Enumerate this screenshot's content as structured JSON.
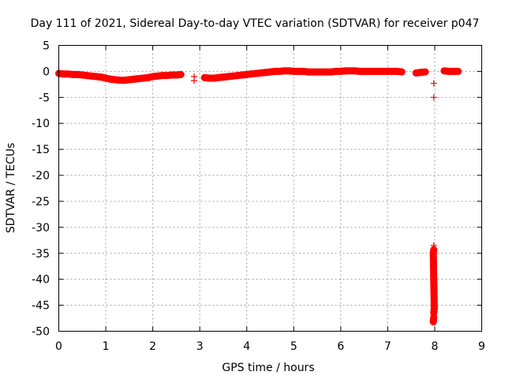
{
  "chart_data": {
    "type": "scatter",
    "title": "Day 111 of 2021, Sidereal Day-to-day VTEC variation (SDTVAR) for receiver p047",
    "xlabel": "GPS time / hours",
    "ylabel": "SDTVAR / TECUs",
    "xlim": [
      0,
      9
    ],
    "ylim": [
      -50,
      5
    ],
    "x_ticks": [
      0,
      1,
      2,
      3,
      4,
      5,
      6,
      7,
      8,
      9
    ],
    "y_ticks": [
      5,
      0,
      -5,
      -10,
      -15,
      -20,
      -25,
      -30,
      -35,
      -40,
      -45,
      -50
    ],
    "grid": true,
    "marker": "+",
    "series_color": "#ff0000",
    "series": [
      {
        "name": "SDTVAR",
        "points": [
          [
            0.0,
            -0.4
          ],
          [
            0.1,
            -0.5
          ],
          [
            0.2,
            -0.5
          ],
          [
            0.3,
            -0.6
          ],
          [
            0.4,
            -0.6
          ],
          [
            0.5,
            -0.7
          ],
          [
            0.6,
            -0.8
          ],
          [
            0.7,
            -0.9
          ],
          [
            0.8,
            -1.0
          ],
          [
            0.9,
            -1.1
          ],
          [
            1.0,
            -1.3
          ],
          [
            1.1,
            -1.5
          ],
          [
            1.2,
            -1.6
          ],
          [
            1.3,
            -1.7
          ],
          [
            1.4,
            -1.7
          ],
          [
            1.5,
            -1.6
          ],
          [
            1.6,
            -1.5
          ],
          [
            1.7,
            -1.4
          ],
          [
            1.8,
            -1.3
          ],
          [
            1.9,
            -1.2
          ],
          [
            2.0,
            -1.0
          ],
          [
            2.1,
            -0.9
          ],
          [
            2.2,
            -0.8
          ],
          [
            2.3,
            -0.8
          ],
          [
            2.4,
            -0.7
          ],
          [
            2.5,
            -0.7
          ],
          [
            2.6,
            -0.6
          ],
          [
            2.88,
            -1.0
          ],
          [
            2.88,
            -1.8
          ],
          [
            3.1,
            -1.2
          ],
          [
            3.2,
            -1.3
          ],
          [
            3.3,
            -1.3
          ],
          [
            3.4,
            -1.2
          ],
          [
            3.5,
            -1.1
          ],
          [
            3.6,
            -1.0
          ],
          [
            3.7,
            -0.9
          ],
          [
            3.8,
            -0.8
          ],
          [
            3.9,
            -0.7
          ],
          [
            4.0,
            -0.6
          ],
          [
            4.1,
            -0.5
          ],
          [
            4.2,
            -0.4
          ],
          [
            4.3,
            -0.3
          ],
          [
            4.4,
            -0.2
          ],
          [
            4.5,
            -0.1
          ],
          [
            4.6,
            0.0
          ],
          [
            4.7,
            0.0
          ],
          [
            4.8,
            0.1
          ],
          [
            4.9,
            0.1
          ],
          [
            5.0,
            0.0
          ],
          [
            5.1,
            0.0
          ],
          [
            5.2,
            0.0
          ],
          [
            5.3,
            -0.1
          ],
          [
            5.4,
            -0.1
          ],
          [
            5.5,
            -0.1
          ],
          [
            5.6,
            -0.1
          ],
          [
            5.7,
            -0.1
          ],
          [
            5.8,
            -0.1
          ],
          [
            5.9,
            0.0
          ],
          [
            6.0,
            0.0
          ],
          [
            6.1,
            0.1
          ],
          [
            6.2,
            0.1
          ],
          [
            6.3,
            0.1
          ],
          [
            6.4,
            0.0
          ],
          [
            6.5,
            0.0
          ],
          [
            6.6,
            0.0
          ],
          [
            6.7,
            0.0
          ],
          [
            6.8,
            0.0
          ],
          [
            6.9,
            0.0
          ],
          [
            7.0,
            0.0
          ],
          [
            7.1,
            0.0
          ],
          [
            7.2,
            0.0
          ],
          [
            7.3,
            -0.1
          ],
          [
            7.6,
            -0.3
          ],
          [
            7.7,
            -0.2
          ],
          [
            7.8,
            -0.1
          ],
          [
            7.98,
            -2.3
          ],
          [
            7.98,
            -5.0
          ],
          [
            7.98,
            -33.5
          ],
          [
            7.98,
            -34.3
          ],
          [
            7.97,
            -35.0
          ],
          [
            7.99,
            -45.6
          ],
          [
            7.98,
            -46.5
          ],
          [
            7.98,
            -47.3
          ],
          [
            7.97,
            -48.2
          ],
          [
            8.2,
            0.1
          ],
          [
            8.3,
            0.0
          ],
          [
            8.4,
            0.0
          ],
          [
            8.5,
            0.0
          ]
        ]
      }
    ]
  }
}
